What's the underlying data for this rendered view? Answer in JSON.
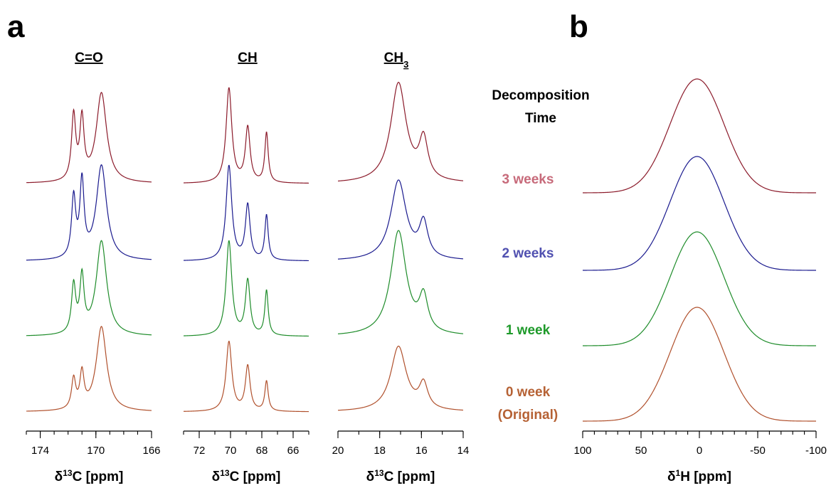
{
  "panel_labels": {
    "a": "a",
    "b": "b"
  },
  "legend_header": [
    "Decomposition",
    "Time"
  ],
  "colors": {
    "3 weeks": "#8b1a2a",
    "2 weeks": "#1a1a8e",
    "1 week": "#1e8c2a",
    "0 week": "#b0502c",
    "label_3": "#c76a7a",
    "label_2": "#5050b0",
    "label_1": "#1e9a2a",
    "label_0": "#b66235"
  },
  "chart_data": [
    {
      "type": "line",
      "panel": "a",
      "column_title": "C=O",
      "title_sub": "",
      "xlabel": {
        "pre": "δ",
        "sup": "13",
        "post": "C [ppm]"
      },
      "xlim": [
        175,
        166
      ],
      "xticks": [
        174,
        170,
        166
      ],
      "tick_labels": [
        "174",
        "170",
        "166"
      ],
      "minor_step": 1,
      "peaks": [
        {
          "center": 169.6,
          "width": 0.45
        },
        {
          "center": 171.0,
          "width": 0.18
        },
        {
          "center": 171.6,
          "width": 0.18
        }
      ],
      "series": [
        {
          "key": "3 weeks",
          "amps": [
            0.9,
            0.6,
            0.65
          ]
        },
        {
          "key": "2 weeks",
          "amps": [
            0.95,
            0.75,
            0.6
          ]
        },
        {
          "key": "1 week",
          "amps": [
            0.95,
            0.55,
            0.48
          ]
        },
        {
          "key": "0 week",
          "amps": [
            0.85,
            0.35,
            0.3
          ]
        }
      ]
    },
    {
      "type": "line",
      "panel": "a",
      "column_title": "CH",
      "title_sub": "",
      "xlabel": {
        "pre": "δ",
        "sup": "13",
        "post": "C [ppm]"
      },
      "xlim": [
        73,
        65
      ],
      "xticks": [
        72,
        70,
        68,
        66
      ],
      "tick_labels": [
        "72",
        "70",
        "68",
        "66"
      ],
      "minor_step": 1,
      "peaks": [
        {
          "center": 70.1,
          "width": 0.22
        },
        {
          "center": 68.9,
          "width": 0.18
        },
        {
          "center": 67.7,
          "width": 0.13
        }
      ],
      "series": [
        {
          "key": "3 weeks",
          "amps": [
            0.95,
            0.55,
            0.5
          ]
        },
        {
          "key": "2 weeks",
          "amps": [
            0.95,
            0.55,
            0.45
          ]
        },
        {
          "key": "1 week",
          "amps": [
            0.95,
            0.55,
            0.45
          ]
        },
        {
          "key": "0 week",
          "amps": [
            0.7,
            0.45,
            0.3
          ]
        }
      ]
    },
    {
      "type": "line",
      "panel": "a",
      "column_title": "CH",
      "title_sub": "3",
      "xlabel": {
        "pre": "δ",
        "sup": "13",
        "post": "C [ppm]"
      },
      "xlim": [
        20,
        14
      ],
      "xticks": [
        20,
        18,
        16,
        14
      ],
      "tick_labels": [
        "20",
        "18",
        "16",
        "14"
      ],
      "minor_step": 1,
      "peaks": [
        {
          "center": 17.1,
          "width": 0.45
        },
        {
          "center": 15.9,
          "width": 0.25
        }
      ],
      "series": [
        {
          "key": "3 weeks",
          "amps": [
            1.0,
            0.4
          ]
        },
        {
          "key": "2 weeks",
          "amps": [
            0.8,
            0.35
          ]
        },
        {
          "key": "1 week",
          "amps": [
            1.05,
            0.35
          ]
        },
        {
          "key": "0 week",
          "amps": [
            0.65,
            0.25
          ]
        }
      ]
    },
    {
      "type": "line",
      "panel": "b",
      "column_title": "",
      "title_sub": "",
      "xlabel": {
        "pre": "δ",
        "sup": "1",
        "post": "H [ppm]"
      },
      "xlim": [
        100,
        -100
      ],
      "xticks": [
        100,
        50,
        0,
        -50,
        -100
      ],
      "tick_labels": [
        "100",
        "50",
        "0",
        "-50",
        "-100"
      ],
      "minor_step": 10,
      "peaks": [
        {
          "center": 2,
          "width": 23
        }
      ],
      "series": [
        {
          "key": "3 weeks",
          "amps": [
            1.0
          ]
        },
        {
          "key": "2 weeks",
          "amps": [
            1.0
          ]
        },
        {
          "key": "1 week",
          "amps": [
            1.0
          ]
        },
        {
          "key": "0 week",
          "amps": [
            1.0
          ]
        }
      ]
    }
  ],
  "time_labels": [
    {
      "key": "3 weeks",
      "lines": [
        "3 weeks"
      ],
      "color_key": "label_3"
    },
    {
      "key": "2 weeks",
      "lines": [
        "2 weeks"
      ],
      "color_key": "label_2"
    },
    {
      "key": "1 week",
      "lines": [
        "1 week"
      ],
      "color_key": "label_1"
    },
    {
      "key": "0 week",
      "lines": [
        "0 week",
        "(Original)"
      ],
      "color_key": "label_0"
    }
  ]
}
